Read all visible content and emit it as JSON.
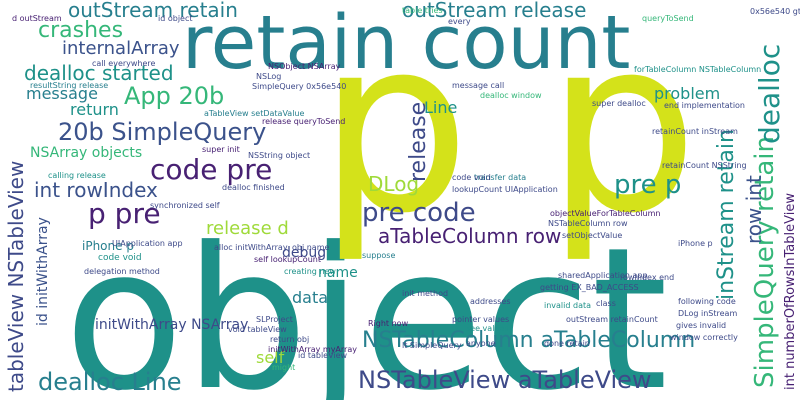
{
  "words": [
    "object",
    "p",
    "p",
    "retain count",
    "outStream retain",
    "outStream release",
    "crashes",
    "internalArray",
    "dealloc started",
    "App 20b",
    "message",
    "20b SimpleQuery",
    "return",
    "NSArray objects",
    "code pre",
    "int rowIndex",
    "p pre",
    "release d",
    "pre code",
    "pre p",
    "aTableColumn row",
    "DLog",
    "Line",
    "problem",
    "debug",
    "name",
    "data",
    "self",
    "initWithArray NSArray",
    "dealloc Line",
    "NSTableColumn aTableColumn",
    "NSTableView aTableView",
    "tableView NSTableView",
    "id initWithArray",
    "release",
    "SimpleQuery retain",
    "inStream retain",
    "row int",
    "dealloc",
    "d outStream",
    "int numberOfRowsInTableView",
    "resultString release",
    "queryToSend",
    "NSLog",
    "SimpleQuery 0x56e540",
    "aTableView setDataValue",
    "NSObject NSArray",
    "release queryToSend",
    "dealloc window",
    "message call",
    "setObjectValue",
    "lookupCount UIApplication",
    "NSTableColumn row",
    "objectValueForTableColumn",
    "forTableColumn NSTableColumn",
    "getting EX_BAD_ACCESS",
    "rowIndex end",
    "Right now",
    "see values",
    "initWithArray myArray",
    "self lookupCount",
    "delegation method",
    "pointer values",
    "super init",
    "invalid data",
    "transfer data",
    "calling release",
    "NSString object",
    "dealloc finished",
    "synchronized self",
    "UIApplication app",
    "sharedApplication app",
    "retainCount inStream",
    "NSArrayDataSource",
    "iPhone p",
    "following code",
    "DLog inStream",
    "gives invalid",
    "window correctly",
    "end implementation",
    "retainCount NSString",
    "0x56e540 gt",
    "gt App",
    "void tableView",
    "alloc initWithArray",
    "creating new",
    "suppose",
    "addresses",
    "code void",
    "obj name",
    "return obj",
    "id tableView",
    "SLProject",
    "lt SimpleQuery",
    "init method",
    "might",
    "anyone",
    "ideas",
    "done retain",
    "super dealloc",
    "every",
    "class",
    "Wondering",
    "outStream retainCount",
    "id object",
    "call everywhere",
    "table tries",
    "follows p",
    "lt App"
  ]
}
